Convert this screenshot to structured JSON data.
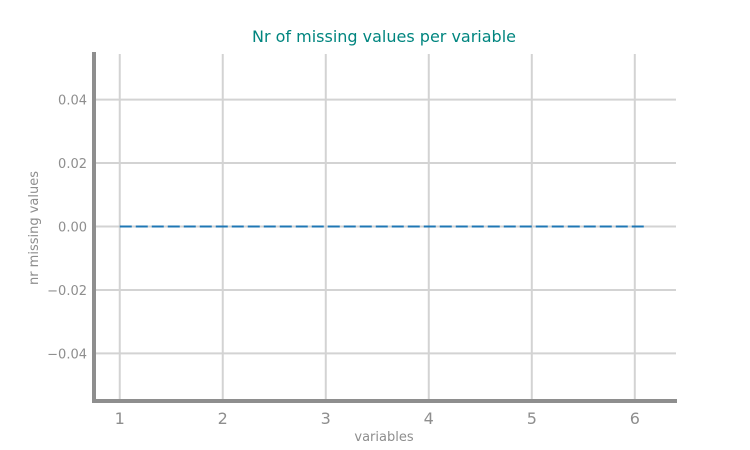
{
  "chart_data": {
    "type": "line",
    "title": "Nr of missing values per variable",
    "xlabel": "variables",
    "ylabel": "nr missing values",
    "x": [
      1,
      2,
      3,
      4,
      5,
      6
    ],
    "x_tick_labels": [
      "1",
      "2",
      "3",
      "4",
      "5",
      "6"
    ],
    "y_ticks": [
      0.04,
      0.02,
      0.0,
      -0.02,
      -0.04
    ],
    "y_tick_labels": [
      "0.04",
      "0.02",
      "0.00",
      "−0.02",
      "−0.04"
    ],
    "series": [
      {
        "values": [
          0,
          0,
          0,
          0,
          0,
          0
        ],
        "style": "dashed"
      }
    ],
    "xlim": [
      0.75,
      6.4
    ],
    "ylim": [
      -0.055,
      0.055
    ],
    "grid": true,
    "colors": {
      "title": "#00857f",
      "line": "#1f77b4",
      "grid": "#d3d3d3",
      "axis": "#8e8e8e",
      "text": "#8e8e8e"
    }
  }
}
